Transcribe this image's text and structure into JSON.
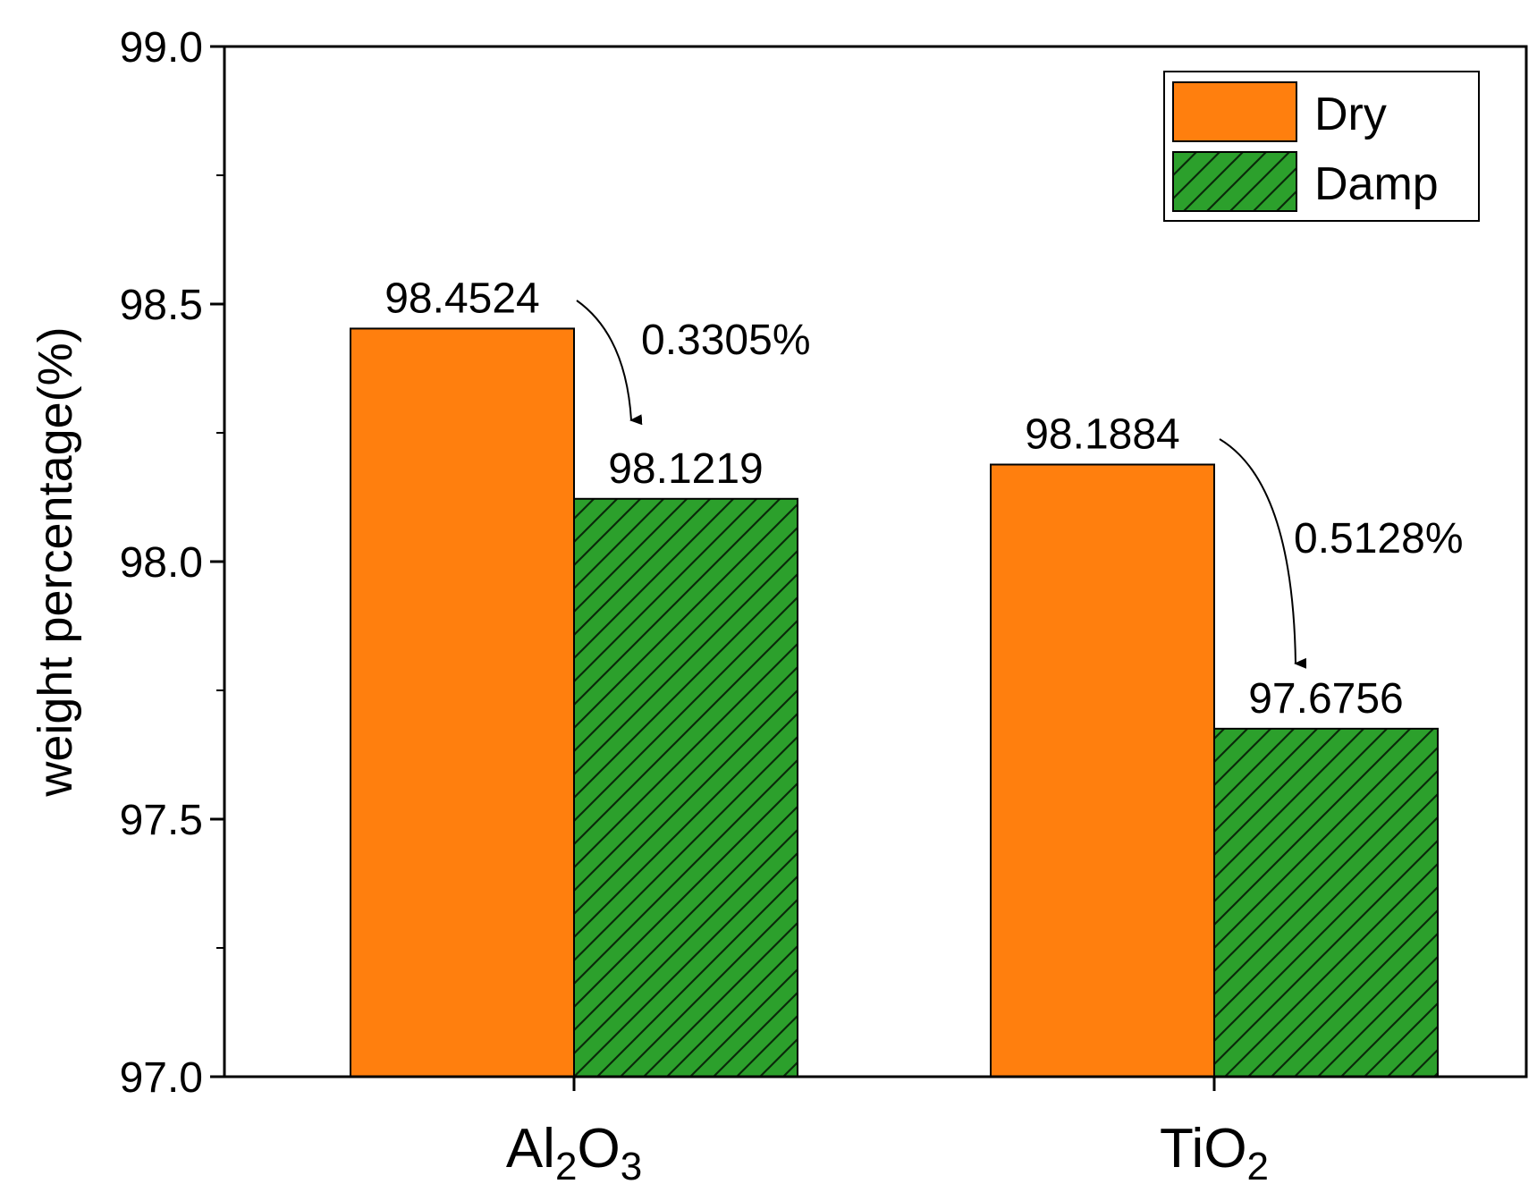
{
  "chart_data": {
    "type": "bar",
    "title": "",
    "xlabel": "",
    "ylabel": "weight percentage(%)",
    "ylim": [
      97.0,
      99.0
    ],
    "yticks": [
      97.0,
      97.5,
      98.0,
      98.5,
      99.0
    ],
    "ytick_labels": [
      "97.0",
      "97.5",
      "98.0",
      "98.5",
      "99.0"
    ],
    "grid": false,
    "legend_position": "top-right",
    "categories": [
      {
        "label": "Al2O3",
        "base1": "Al",
        "sub1": "2",
        "base2": "O",
        "sub2": "3"
      },
      {
        "label": "TiO2",
        "base1": "TiO",
        "sub1": "2",
        "base2": "",
        "sub2": ""
      }
    ],
    "series": [
      {
        "name": "Dry",
        "color": "#FF7F0E",
        "pattern": "solid",
        "values": [
          98.4524,
          98.1884
        ],
        "labels": [
          "98.4524",
          "98.1884"
        ]
      },
      {
        "name": "Damp",
        "color": "#2CA02C",
        "pattern": "hatch",
        "values": [
          98.1219,
          97.6756
        ],
        "labels": [
          "98.1219",
          "97.6756"
        ]
      }
    ],
    "annotations": [
      {
        "text": "0.3305%",
        "category": 0
      },
      {
        "text": "0.5128%",
        "category": 1
      }
    ]
  }
}
